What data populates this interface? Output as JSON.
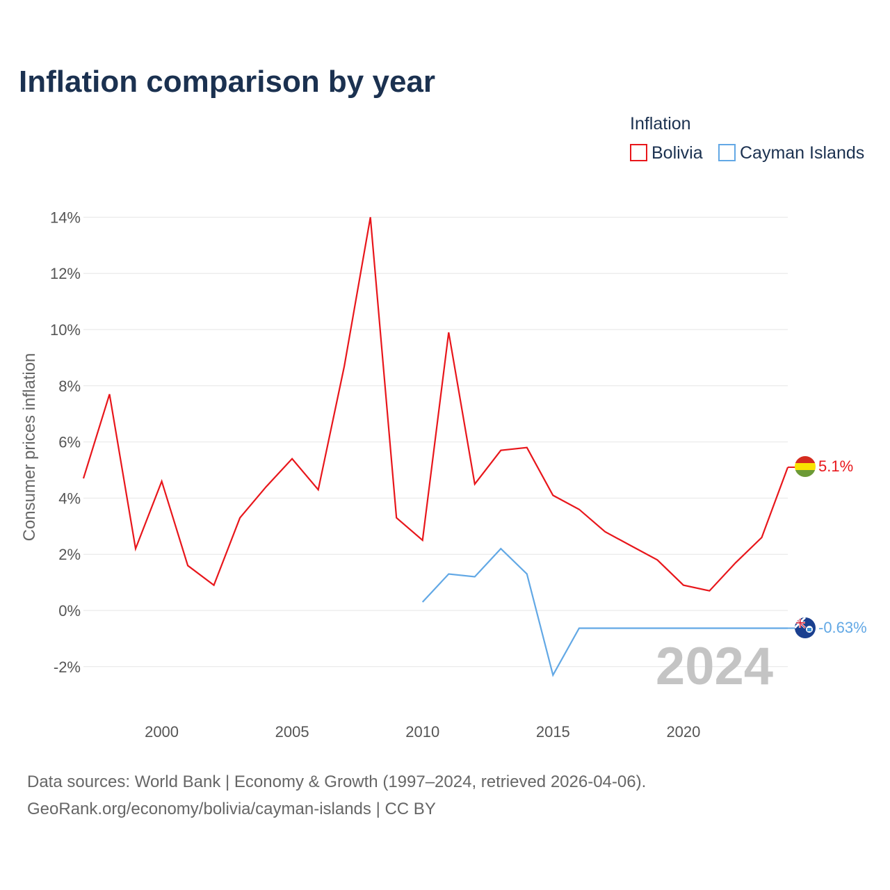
{
  "title": "Inflation comparison by year",
  "legend": {
    "title": "Inflation",
    "items": [
      {
        "label": "Bolivia",
        "color": "#e8161b"
      },
      {
        "label": "Cayman Islands",
        "color": "#62a8e5"
      }
    ]
  },
  "chart_data": {
    "type": "line",
    "title": "Inflation comparison by year",
    "xlabel": "",
    "ylabel": "Consumer prices inflation",
    "xlim": [
      1997,
      2024
    ],
    "ylim": [
      -3,
      14
    ],
    "x_ticks": [
      2000,
      2005,
      2010,
      2015,
      2020
    ],
    "y_ticks": [
      -2,
      0,
      2,
      4,
      6,
      8,
      10,
      12,
      14
    ],
    "y_tick_labels": [
      "-2%",
      "0%",
      "2%",
      "4%",
      "6%",
      "8%",
      "10%",
      "12%",
      "14%"
    ],
    "x_tick_labels": [
      "2000",
      "2005",
      "2010",
      "2015",
      "2020"
    ],
    "grid": true,
    "current_year_label": "2024",
    "series": [
      {
        "name": "Bolivia",
        "color": "#e8161b",
        "end_label": "5.1%",
        "x": [
          1997,
          1998,
          1999,
          2000,
          2001,
          2002,
          2003,
          2004,
          2005,
          2006,
          2007,
          2008,
          2009,
          2010,
          2011,
          2012,
          2013,
          2014,
          2015,
          2016,
          2017,
          2018,
          2019,
          2020,
          2021,
          2022,
          2023,
          2024
        ],
        "values": [
          4.7,
          7.7,
          2.2,
          4.6,
          1.6,
          0.9,
          3.3,
          4.4,
          5.4,
          4.3,
          8.7,
          14.0,
          3.3,
          2.5,
          9.9,
          4.5,
          5.7,
          5.8,
          4.1,
          3.6,
          2.8,
          2.3,
          1.8,
          0.9,
          0.7,
          1.7,
          2.6,
          5.1
        ]
      },
      {
        "name": "Cayman Islands",
        "color": "#62a8e5",
        "end_label": "-0.63%",
        "x": [
          2010,
          2011,
          2012,
          2013,
          2014,
          2015,
          2016,
          2024
        ],
        "values": [
          0.3,
          1.3,
          1.2,
          2.2,
          1.3,
          -2.3,
          -0.63,
          -0.63
        ]
      }
    ]
  },
  "source": {
    "line1": "Data sources: World Bank | Economy & Growth (1997–2024, retrieved 2026-04-06).",
    "line2": "GeoRank.org/economy/bolivia/cayman-islands | CC BY"
  }
}
